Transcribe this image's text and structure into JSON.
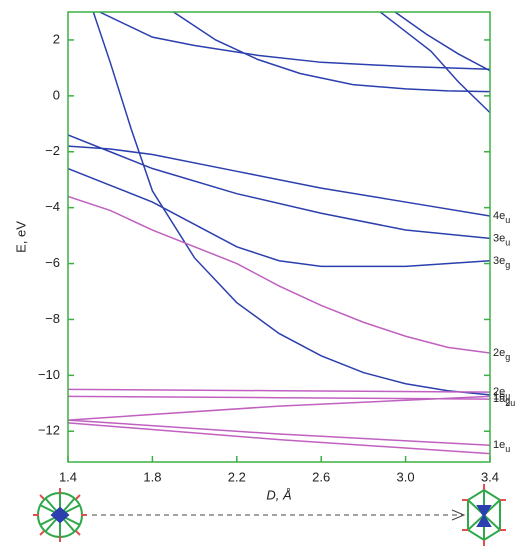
{
  "chart_data": {
    "type": "line",
    "xlabel": "D, Å",
    "ylabel": "E, eV",
    "xlim": [
      1.4,
      3.4
    ],
    "ylim": [
      -13.1,
      3
    ],
    "xticks": [
      1.4,
      1.8,
      2.2,
      2.6,
      {
        "value": 3,
        "label": "3.0"
      },
      3.4
    ],
    "yticks": [
      {
        "value": -12,
        "label": "−12"
      },
      {
        "value": -10,
        "label": "−10"
      },
      {
        "value": -8,
        "label": "−8"
      },
      {
        "value": -6,
        "label": "−6"
      },
      {
        "value": -4,
        "label": "−4"
      },
      {
        "value": -2,
        "label": "−2"
      },
      0,
      2
    ],
    "series": [
      {
        "color": "#2b3fae",
        "x": [
          1.52,
          1.6,
          1.7,
          1.8,
          2.0,
          2.2,
          2.4,
          2.6,
          2.8,
          3.0,
          3.2,
          3.4
        ],
        "values": [
          3,
          1.2,
          -1.2,
          -3.4,
          -5.8,
          -7.4,
          -8.5,
          -9.3,
          -9.9,
          -10.3,
          -10.55,
          -10.7
        ]
      },
      {
        "color": "#2b3fae",
        "x": [
          1.55,
          1.8,
          2.0,
          2.3,
          2.6,
          3.0,
          3.4
        ],
        "values": [
          3,
          2.1,
          1.8,
          1.45,
          1.2,
          1.05,
          0.95
        ]
      },
      {
        "color": "#2b3fae",
        "x": [
          1.9,
          2.1,
          2.3,
          2.5,
          2.75,
          3.0,
          3.2,
          3.4
        ],
        "values": [
          3,
          2.0,
          1.3,
          0.8,
          0.4,
          0.25,
          0.18,
          0.15
        ]
      },
      {
        "color": "#2b3fae",
        "x": [
          2.88,
          3.0,
          3.12,
          3.25,
          3.4
        ],
        "values": [
          3,
          2.3,
          1.6,
          0.5,
          -0.6
        ]
      },
      {
        "color": "#2b3fae",
        "x": [
          2.95,
          3.1,
          3.25,
          3.4
        ],
        "values": [
          3,
          2.2,
          1.5,
          0.9
        ]
      },
      {
        "name": "4e",
        "sub": "u",
        "color": "#2b3fae",
        "x": [
          1.4,
          1.6,
          1.8,
          2.2,
          2.6,
          3.0,
          3.4
        ],
        "values": [
          -1.8,
          -1.9,
          -2.1,
          -2.7,
          -3.3,
          -3.8,
          -4.3
        ]
      },
      {
        "name": "3e",
        "sub": "u",
        "color": "#2b3fae",
        "x": [
          1.4,
          1.6,
          1.8,
          2.2,
          2.6,
          3.0,
          3.4
        ],
        "values": [
          -1.4,
          -2.0,
          -2.6,
          -3.5,
          -4.2,
          -4.8,
          -5.1
        ]
      },
      {
        "name": "3e",
        "sub": "g",
        "color": "#2b3fae",
        "x": [
          1.4,
          1.6,
          1.8,
          2.0,
          2.2,
          2.4,
          2.6,
          3.0,
          3.4
        ],
        "values": [
          -2.6,
          -3.2,
          -3.8,
          -4.6,
          -5.4,
          -5.9,
          -6.1,
          -6.1,
          -5.9
        ]
      },
      {
        "name": "2e",
        "sub": "g",
        "color": "#c060c0",
        "x": [
          1.4,
          1.6,
          1.8,
          2.0,
          2.2,
          2.4,
          2.6,
          2.8,
          3.0,
          3.2,
          3.4
        ],
        "values": [
          -3.6,
          -4.1,
          -4.8,
          -5.4,
          -6.0,
          -6.8,
          -7.5,
          -8.1,
          -8.6,
          -9.0,
          -9.2
        ]
      },
      {
        "name": "2e",
        "sub": "u",
        "color": "#c060c0",
        "x": [
          1.4,
          2.4,
          3.4
        ],
        "values": [
          -10.5,
          -10.55,
          -10.6
        ]
      },
      {
        "name": "1a",
        "sub": "2u",
        "color": "#c060c0",
        "x": [
          1.4,
          2.4,
          3.4
        ],
        "values": [
          -10.75,
          -10.8,
          -10.85
        ]
      },
      {
        "name": "1e",
        "sub": "g",
        "color": "#c060c0",
        "x": [
          1.4,
          2.4,
          3.4
        ],
        "values": [
          -11.6,
          -11.1,
          -10.75
        ]
      },
      {
        "name": "1e",
        "sub": "u",
        "color": "#c060c0",
        "x": [
          1.4,
          2.4,
          3.4
        ],
        "values": [
          -11.6,
          -12.1,
          -12.5
        ]
      },
      {
        "color": "#c060c0",
        "x": [
          1.4,
          2.4,
          3.4
        ],
        "values": [
          -11.7,
          -12.3,
          -12.8
        ]
      }
    ]
  }
}
